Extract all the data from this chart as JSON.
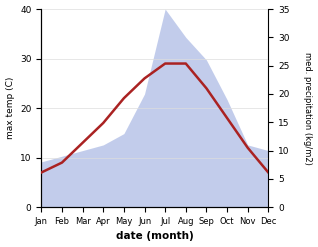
{
  "months": [
    "Jan",
    "Feb",
    "Mar",
    "Apr",
    "May",
    "Jun",
    "Jul",
    "Aug",
    "Sep",
    "Oct",
    "Nov",
    "Dec"
  ],
  "max_temp": [
    7,
    9,
    13,
    17,
    22,
    26,
    29,
    29,
    24,
    18,
    12,
    7
  ],
  "precipitation": [
    8,
    9,
    10,
    11,
    13,
    20,
    35,
    30,
    26,
    19,
    11,
    10
  ],
  "temp_color": "#aa2222",
  "precip_fill_color": "#b8c4e8",
  "bg_color": "#ffffff",
  "xlabel": "date (month)",
  "ylabel_left": "max temp (C)",
  "ylabel_right": "med. precipitation (kg/m2)",
  "ylim_left": [
    0,
    40
  ],
  "ylim_right": [
    0,
    35
  ],
  "yticks_left": [
    0,
    10,
    20,
    30,
    40
  ],
  "yticks_right": [
    0,
    5,
    10,
    15,
    20,
    25,
    30,
    35
  ]
}
